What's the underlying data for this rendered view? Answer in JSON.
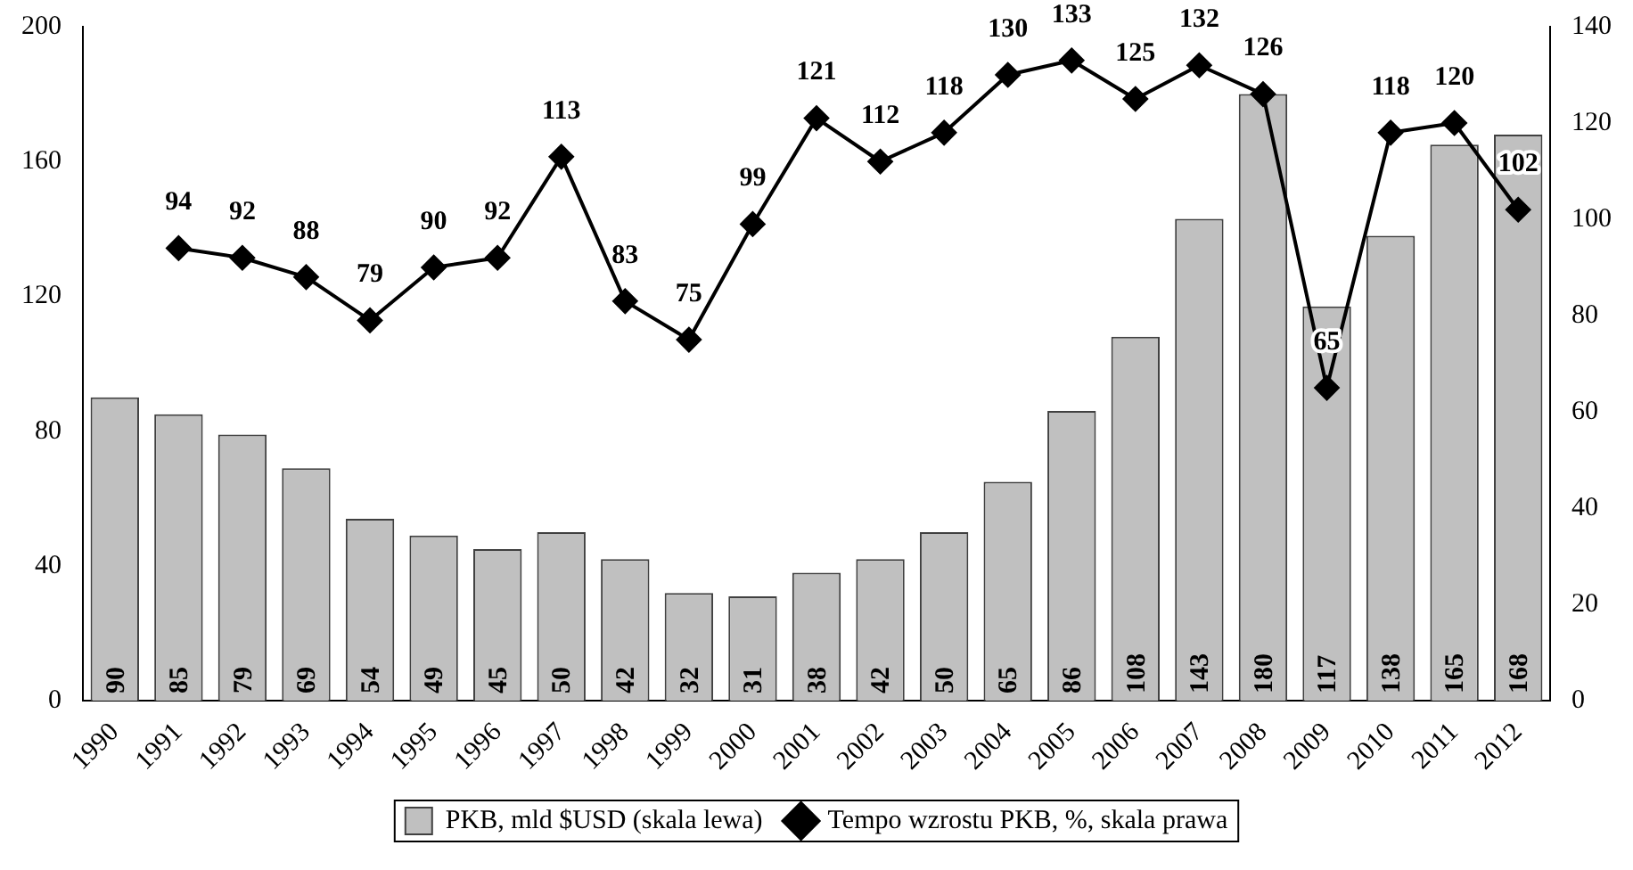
{
  "chart_data": {
    "type": "bar",
    "categories": [
      "1990",
      "1991",
      "1992",
      "1993",
      "1994",
      "1995",
      "1996",
      "1997",
      "1998",
      "1999",
      "2000",
      "2001",
      "2002",
      "2003",
      "2004",
      "2005",
      "2006",
      "2007",
      "2008",
      "2009",
      "2010",
      "2011",
      "2012"
    ],
    "series": [
      {
        "name": "PKB, mld $USD (skala lewa)",
        "color": "#c0c0c0",
        "values": [
          90,
          85,
          79,
          69,
          54,
          49,
          45,
          50,
          42,
          32,
          31,
          38,
          42,
          50,
          65,
          86,
          108,
          143,
          180,
          117,
          138,
          165,
          168
        ]
      },
      {
        "name": "Tempo wzrostu PKB, %, skala prawa",
        "type": "line",
        "axis": "y2",
        "color": "#000000",
        "marker": "diamond",
        "values": [
          null,
          94,
          92,
          88,
          79,
          90,
          92,
          113,
          83,
          75,
          99,
          121,
          112,
          118,
          130,
          133,
          125,
          132,
          126,
          65,
          118,
          120,
          102
        ]
      }
    ],
    "ylim": [
      0,
      200
    ],
    "yticks": [
      0,
      40,
      80,
      120,
      160,
      200
    ],
    "y2lim": [
      0,
      140
    ],
    "y2ticks": [
      0,
      20,
      40,
      60,
      80,
      100,
      120,
      140
    ],
    "grid": false,
    "legend": "bottom",
    "data_labels": true
  }
}
